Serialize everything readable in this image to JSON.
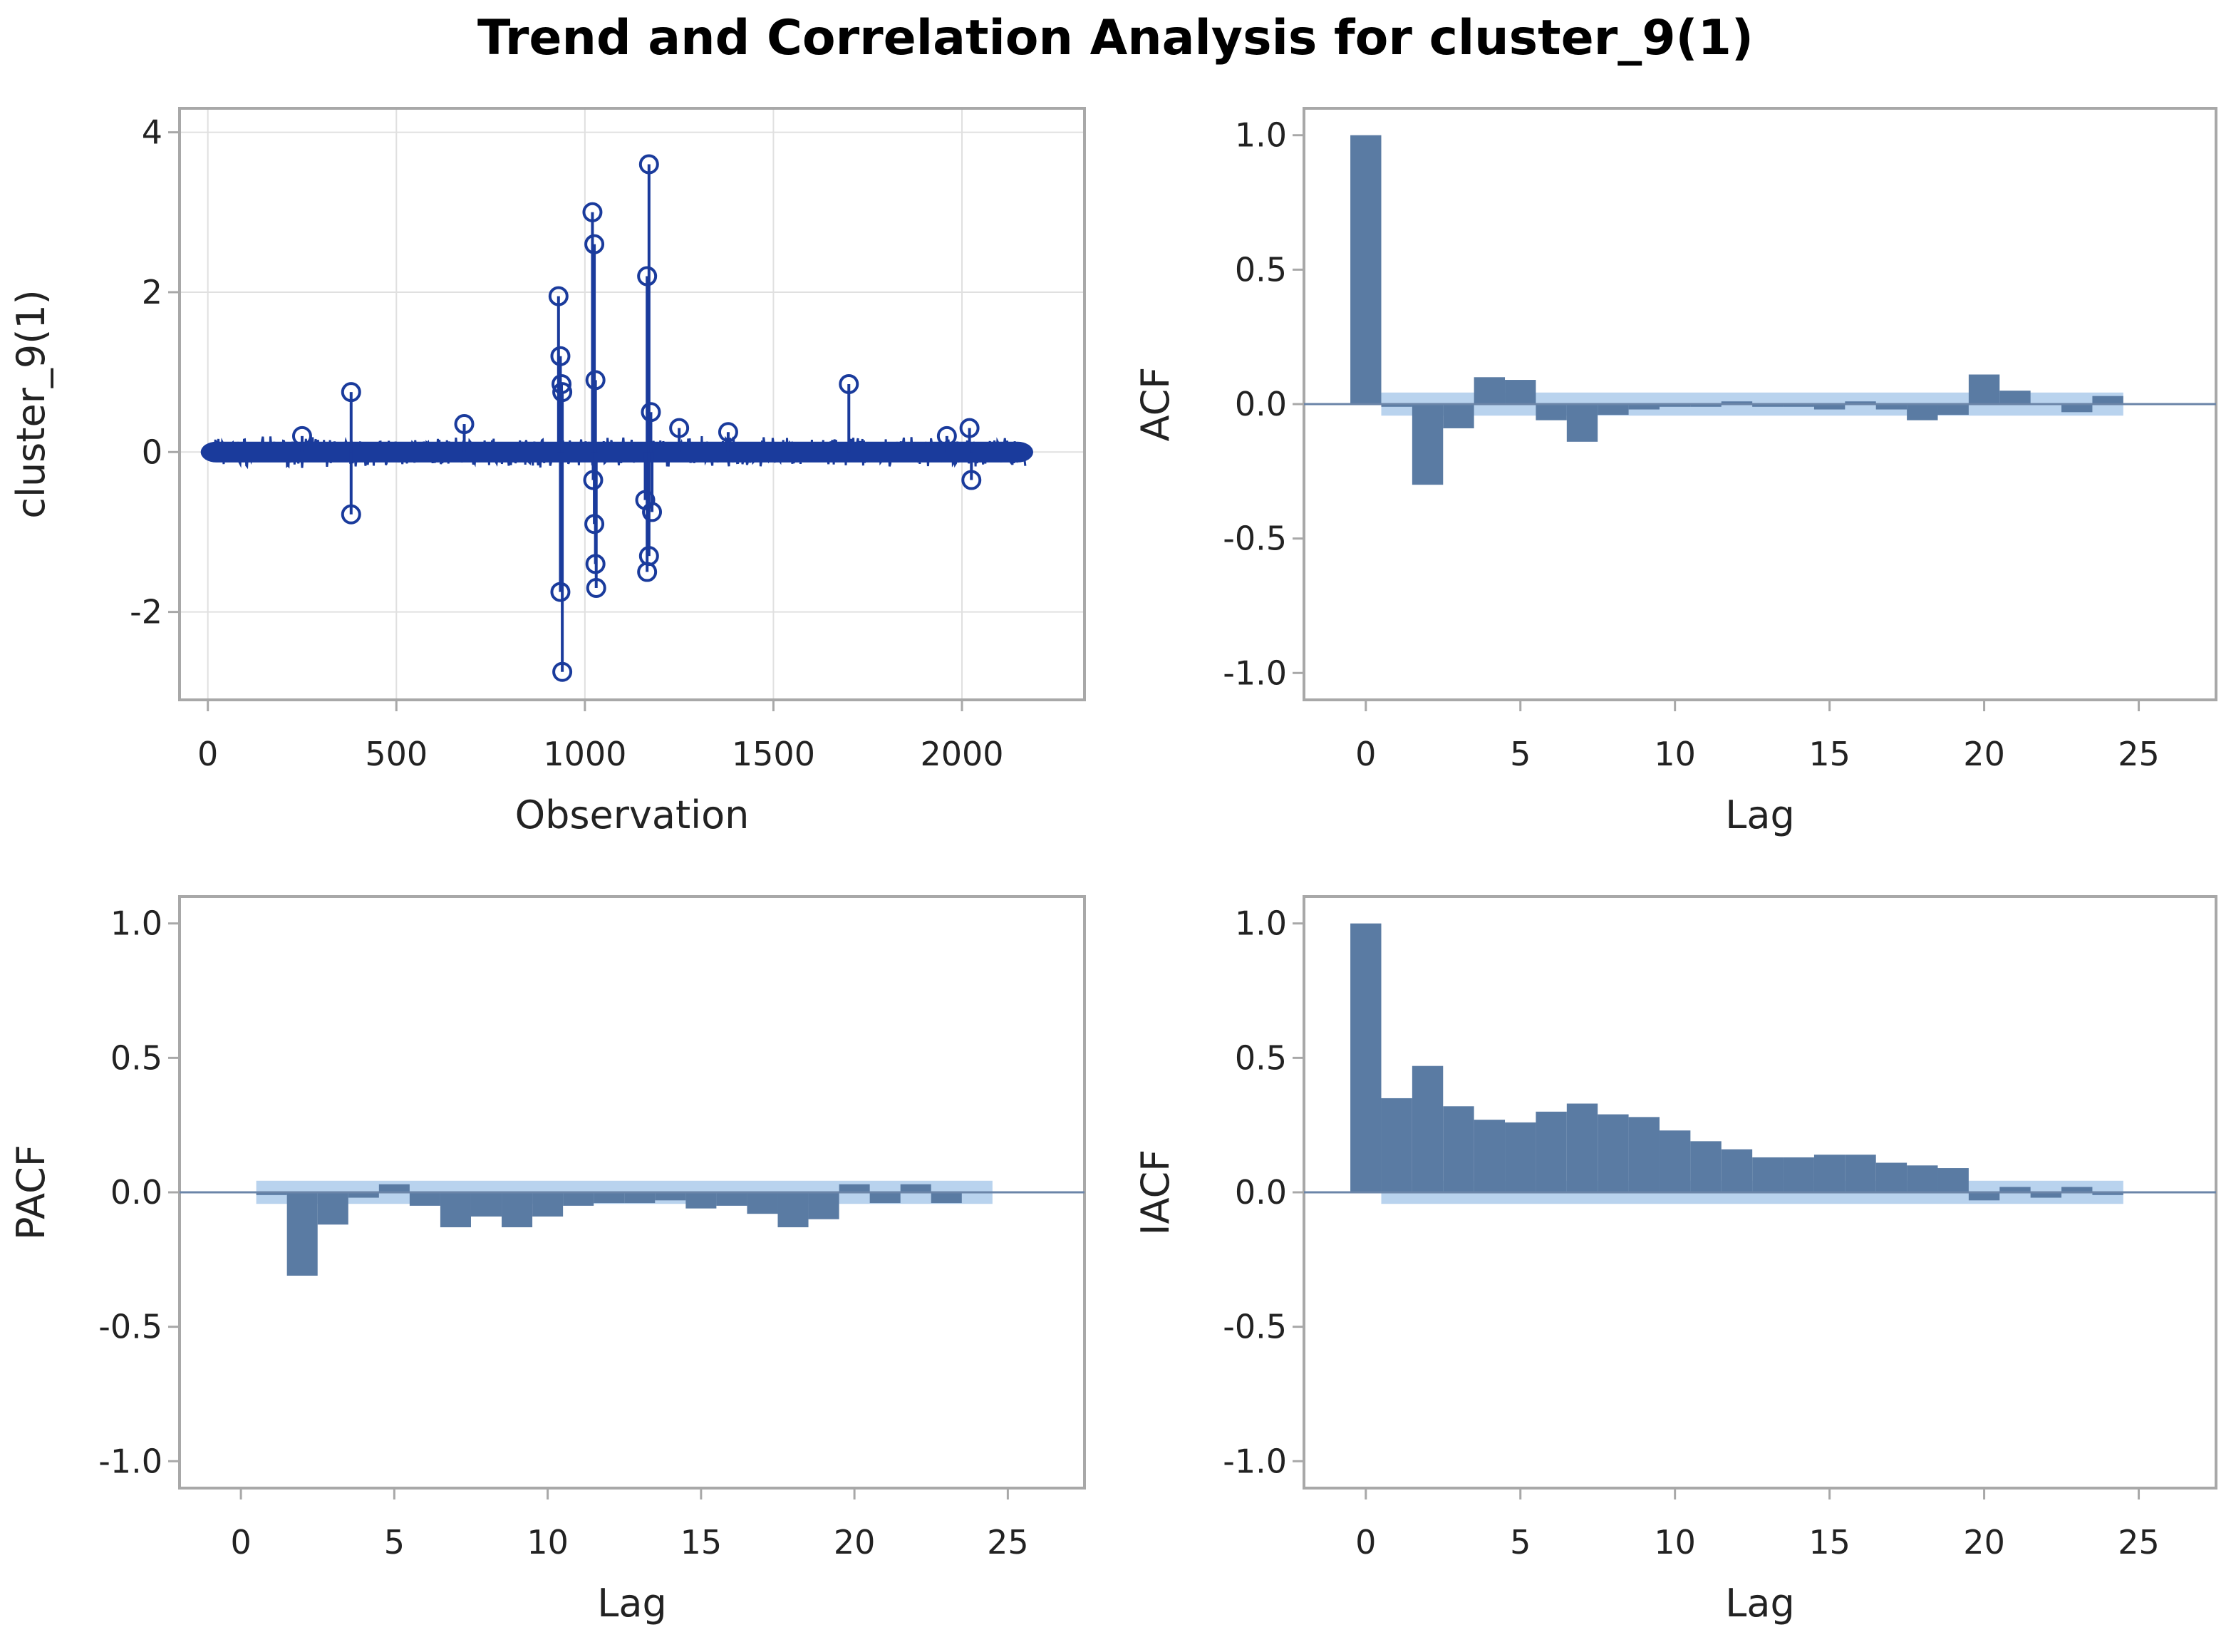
{
  "title": "Trend and Correlation Analysis for cluster_9(1)",
  "colors": {
    "bar": "#5a7ba3",
    "band": "#b9d3ee",
    "series": "#1a3b9c",
    "grid": "#e0e0e0",
    "frame": "#a8a8a8",
    "zero": "#6b85a8"
  },
  "chart_data": [
    {
      "id": "trend",
      "type": "line",
      "xlabel": "Observation",
      "ylabel": "cluster_9(1)",
      "xlim": [
        -75,
        2325
      ],
      "ylim": [
        -3.1,
        4.3
      ],
      "xticks": [
        0,
        500,
        1000,
        1500,
        2000
      ],
      "yticks": [
        -2,
        0,
        2,
        4
      ],
      "grid": true,
      "n_obs": 2170,
      "points": [
        [
          380,
          0.75
        ],
        [
          380,
          -0.78
        ],
        [
          680,
          0.35
        ],
        [
          930,
          1.95
        ],
        [
          935,
          1.2
        ],
        [
          938,
          0.85
        ],
        [
          940,
          0.75
        ],
        [
          935,
          -1.75
        ],
        [
          940,
          -2.75
        ],
        [
          1020,
          3.0
        ],
        [
          1025,
          2.6
        ],
        [
          1028,
          0.9
        ],
        [
          1022,
          -0.35
        ],
        [
          1025,
          -0.9
        ],
        [
          1028,
          -1.4
        ],
        [
          1030,
          -1.7
        ],
        [
          1165,
          2.2
        ],
        [
          1170,
          3.6
        ],
        [
          1175,
          0.5
        ],
        [
          1160,
          -0.6
        ],
        [
          1165,
          -1.5
        ],
        [
          1170,
          -1.3
        ],
        [
          1178,
          -0.75
        ],
        [
          1700,
          0.85
        ],
        [
          2020,
          0.3
        ],
        [
          2025,
          -0.35
        ],
        [
          1250,
          0.3
        ],
        [
          1380,
          0.25
        ],
        [
          250,
          0.2
        ],
        [
          1960,
          0.2
        ]
      ]
    },
    {
      "id": "acf",
      "type": "bar",
      "xlabel": "Lag",
      "ylabel": "ACF",
      "xlim": [
        -2,
        27.5
      ],
      "ylim": [
        -1.1,
        1.1
      ],
      "xticks": [
        0,
        5,
        10,
        15,
        20,
        25
      ],
      "yticks": [
        -1.0,
        -0.5,
        0.0,
        0.5,
        1.0
      ],
      "lags": [
        0,
        1,
        2,
        3,
        4,
        5,
        6,
        7,
        8,
        9,
        10,
        11,
        12,
        13,
        14,
        15,
        16,
        17,
        18,
        19,
        20,
        21,
        22,
        23,
        24
      ],
      "values": [
        1.0,
        -0.01,
        -0.3,
        -0.09,
        0.1,
        0.09,
        -0.06,
        -0.14,
        -0.04,
        -0.02,
        -0.01,
        -0.01,
        0.01,
        -0.01,
        -0.01,
        -0.02,
        0.01,
        -0.02,
        -0.06,
        -0.04,
        0.11,
        0.05,
        0.0,
        -0.03,
        0.03
      ],
      "conf_band": 0.043,
      "band_lags": [
        1,
        24
      ]
    },
    {
      "id": "pacf",
      "type": "bar",
      "xlabel": "Lag",
      "ylabel": "PACF",
      "xlim": [
        -2,
        27.5
      ],
      "ylim": [
        -1.1,
        1.1
      ],
      "xticks": [
        0,
        5,
        10,
        15,
        20,
        25
      ],
      "yticks": [
        -1.0,
        -0.5,
        0.0,
        0.5,
        1.0
      ],
      "lags": [
        1,
        2,
        3,
        4,
        5,
        6,
        7,
        8,
        9,
        10,
        11,
        12,
        13,
        14,
        15,
        16,
        17,
        18,
        19,
        20,
        21,
        22,
        23
      ],
      "values": [
        -0.01,
        -0.31,
        -0.12,
        -0.02,
        0.03,
        -0.05,
        -0.13,
        -0.09,
        -0.13,
        -0.09,
        -0.05,
        -0.04,
        -0.04,
        -0.03,
        -0.06,
        -0.05,
        -0.08,
        -0.13,
        -0.1,
        0.03,
        -0.04,
        0.03,
        -0.04
      ],
      "conf_band": 0.043,
      "band_lags": [
        1,
        24
      ]
    },
    {
      "id": "iacf",
      "type": "bar",
      "xlabel": "Lag",
      "ylabel": "IACF",
      "xlim": [
        -2,
        27.5
      ],
      "ylim": [
        -1.1,
        1.1
      ],
      "xticks": [
        0,
        5,
        10,
        15,
        20,
        25
      ],
      "yticks": [
        -1.0,
        -0.5,
        0.0,
        0.5,
        1.0
      ],
      "lags": [
        0,
        1,
        2,
        3,
        4,
        5,
        6,
        7,
        8,
        9,
        10,
        11,
        12,
        13,
        14,
        15,
        16,
        17,
        18,
        19,
        20,
        21,
        22,
        23,
        24
      ],
      "values": [
        1.0,
        0.35,
        0.47,
        0.32,
        0.27,
        0.26,
        0.3,
        0.33,
        0.29,
        0.28,
        0.23,
        0.19,
        0.16,
        0.13,
        0.13,
        0.14,
        0.14,
        0.11,
        0.1,
        0.09,
        -0.03,
        0.02,
        -0.02,
        0.02,
        -0.01
      ],
      "conf_band": 0.043,
      "band_lags": [
        1,
        24
      ]
    }
  ]
}
